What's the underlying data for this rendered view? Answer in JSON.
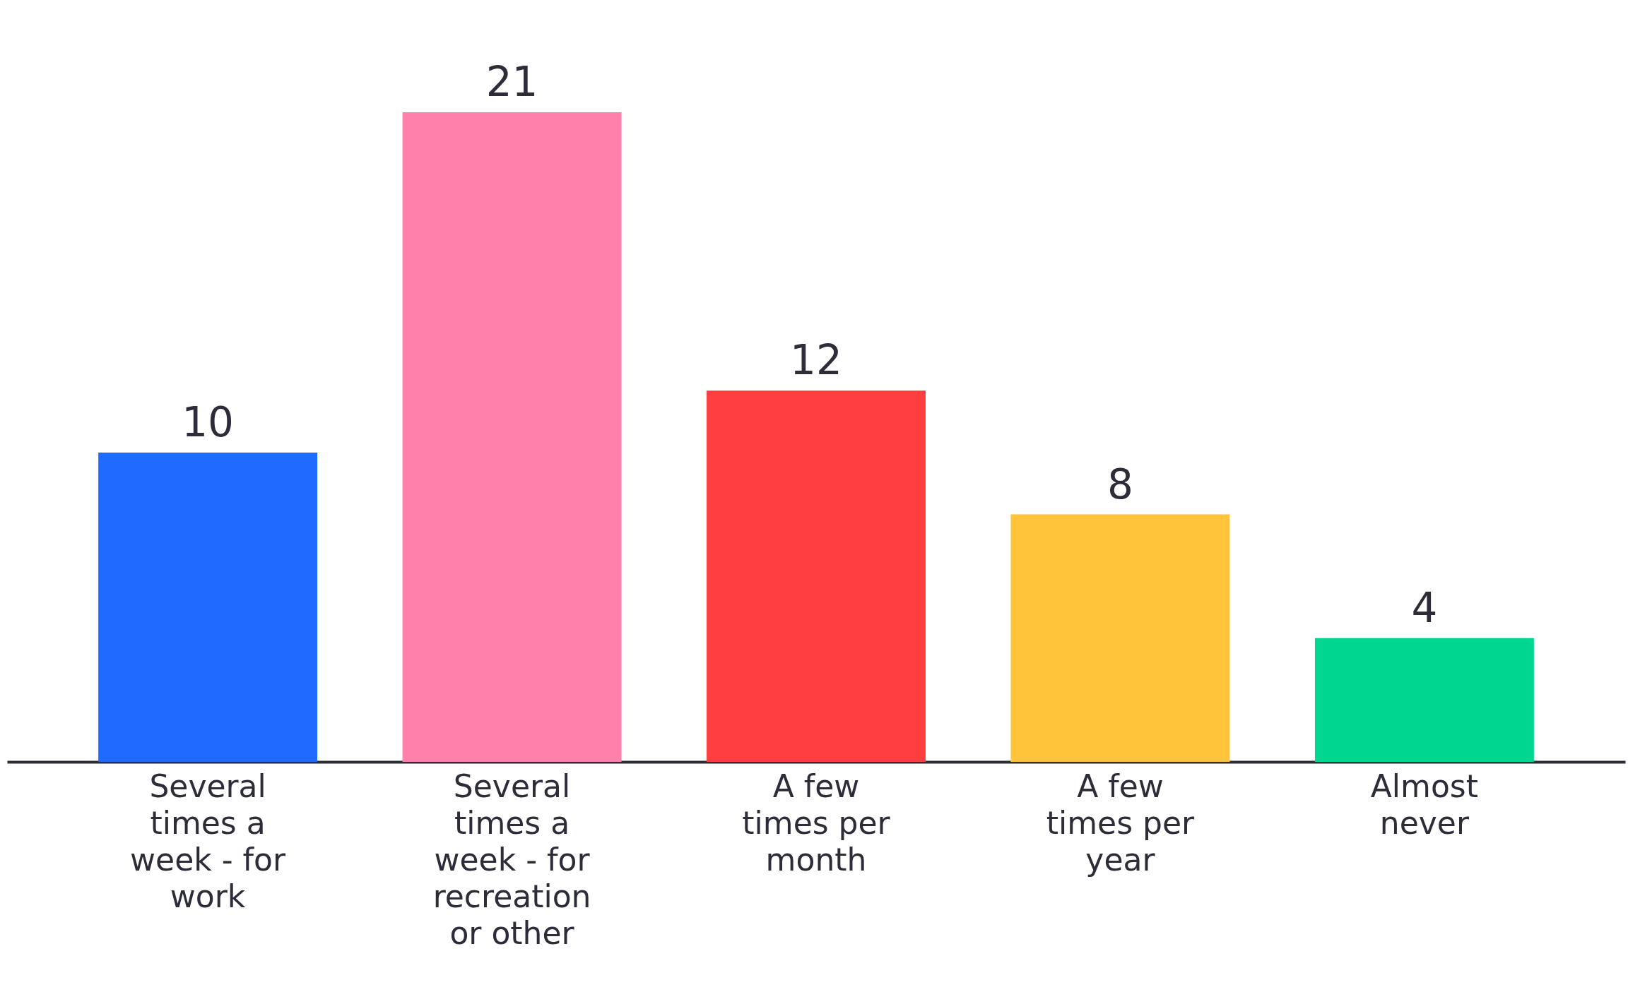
{
  "chart_data": {
    "type": "bar",
    "categories": [
      "Several times a week - for work",
      "Several times a week - for recreation or other",
      "A few times per month",
      "A few times per year",
      "Almost never"
    ],
    "values": [
      10,
      21,
      12,
      8,
      4
    ],
    "colors": [
      "#1f6bff",
      "#ff80ab",
      "#ff3f3f",
      "#ffc43a",
      "#00d68f"
    ],
    "data_labels": true,
    "grid": false,
    "legend": false
  }
}
